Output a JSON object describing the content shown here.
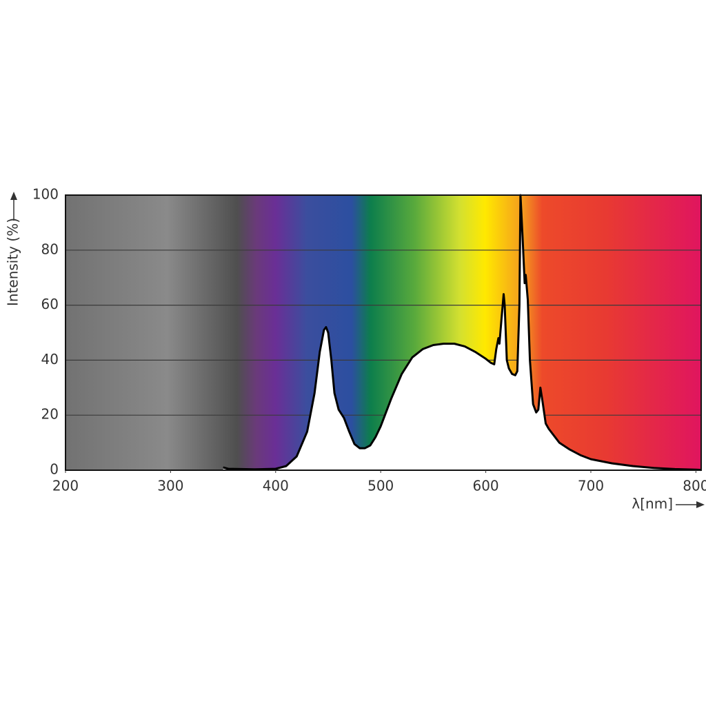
{
  "chart_data": {
    "type": "area",
    "x_label": "λ[nm]",
    "y_label": "Intensity (%)",
    "xlim": [
      200,
      805
    ],
    "xticks": [
      200,
      300,
      400,
      500,
      600,
      700,
      800
    ],
    "ylim": [
      0,
      100
    ],
    "yticks": [
      0,
      20,
      40,
      60,
      80,
      100
    ],
    "grid": true,
    "series": [
      {
        "color": "#000000",
        "x": [
          350,
          355,
          380,
          400,
          410,
          420,
          430,
          437,
          442,
          446,
          448,
          450,
          453,
          456,
          460,
          465,
          470,
          475,
          480,
          485,
          490,
          495,
          500,
          510,
          520,
          530,
          540,
          550,
          560,
          570,
          580,
          590,
          600,
          605,
          608,
          610,
          612,
          613,
          615,
          617,
          618,
          620,
          622,
          625,
          628,
          630,
          632,
          633,
          635,
          637,
          638,
          640,
          642,
          645,
          648,
          650,
          652,
          654,
          657,
          660,
          670,
          680,
          690,
          700,
          720,
          740,
          760,
          780,
          800,
          805
        ],
        "values": [
          1,
          0.5,
          0.3,
          0.5,
          1.5,
          5,
          14,
          28,
          43,
          51,
          52,
          50,
          40,
          28,
          22,
          19,
          14,
          9.5,
          8,
          8,
          9,
          12,
          16,
          26,
          35,
          41,
          44,
          45.5,
          46,
          46,
          45,
          43,
          40.5,
          39,
          38.5,
          44,
          48,
          46,
          55,
          64,
          60,
          40,
          37,
          35,
          34.5,
          36,
          60,
          100,
          85,
          68,
          71,
          62,
          40,
          24,
          21,
          22,
          30,
          25,
          17,
          15,
          10,
          7.5,
          5.5,
          4,
          2.5,
          1.5,
          0.8,
          0.4,
          0.2,
          0.1
        ]
      }
    ]
  }
}
